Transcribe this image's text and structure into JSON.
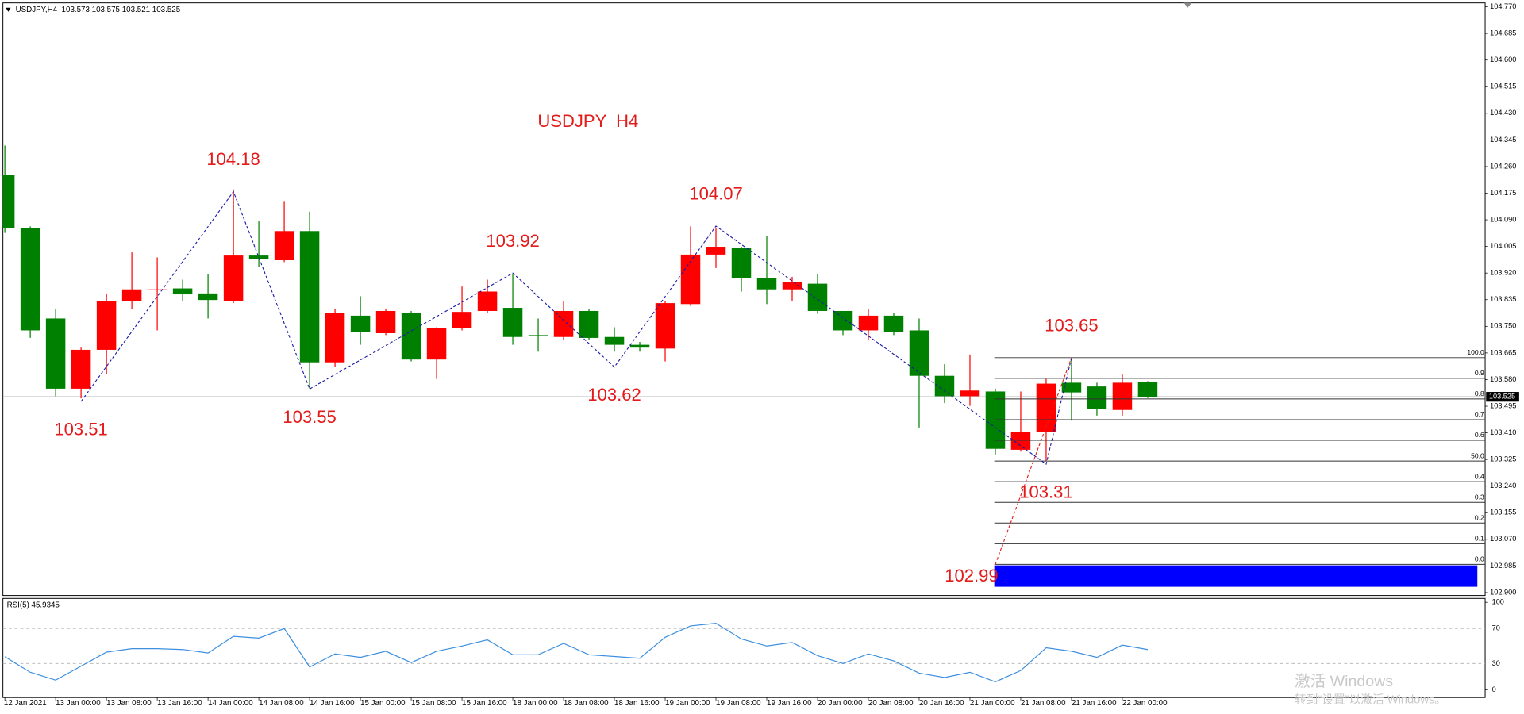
{
  "chart_data": [
    {
      "type": "candlestick",
      "title": "USDJPY,H4  103.573 103.575 103.521 103.525",
      "subtitle": "USDJPY  H4",
      "categories": [
        "12 Jan 2021",
        null,
        "13 Jan 00:00",
        null,
        "13 Jan 08:00",
        null,
        "13 Jan 16:00",
        null,
        "14 Jan 00:00",
        null,
        "14 Jan 08:00",
        null,
        "14 Jan 16:00",
        null,
        "15 Jan 00:00",
        null,
        "15 Jan 08:00",
        null,
        "15 Jan 16:00",
        null,
        "18 Jan 00:00",
        null,
        "18 Jan 08:00",
        null,
        "18 Jan 16:00",
        null,
        "19 Jan 00:00",
        null,
        "19 Jan 08:00",
        null,
        "19 Jan 16:00",
        null,
        "20 Jan 00:00",
        null,
        "20 Jan 08:00",
        null,
        "20 Jan 16:00",
        null,
        "21 Jan 00:00",
        null,
        "21 Jan 08:00",
        null,
        "21 Jan 16:00",
        null,
        "22 Jan 00:00",
        null
      ],
      "open": [
        104.234,
        104.063,
        103.775,
        103.551,
        103.675,
        103.83,
        103.865,
        103.871,
        103.855,
        103.83,
        103.976,
        103.961,
        104.054,
        103.635,
        103.784,
        103.728,
        103.793,
        103.644,
        103.744,
        103.799,
        103.809,
        103.722,
        103.716,
        103.799,
        103.716,
        103.691,
        103.679,
        103.821,
        103.979,
        104.001,
        103.905,
        103.868,
        103.886,
        103.799,
        103.737,
        103.784,
        103.737,
        103.592,
        103.527,
        103.542,
        103.356,
        103.412,
        103.57,
        103.558,
        103.483,
        103.573
      ],
      "high": [
        104.327,
        104.069,
        103.806,
        103.682,
        103.855,
        103.986,
        103.97,
        103.899,
        103.917,
        104.187,
        104.085,
        104.15,
        104.116,
        103.806,
        103.846,
        103.806,
        103.799,
        103.747,
        103.877,
        103.899,
        103.917,
        103.775,
        103.83,
        103.806,
        103.747,
        103.7,
        103.83,
        104.069,
        104.063,
        104.004,
        104.038,
        103.908,
        103.917,
        103.799,
        103.806,
        103.793,
        103.775,
        103.629,
        103.66,
        103.551,
        103.542,
        103.582,
        103.644,
        103.57,
        103.598,
        103.575
      ],
      "low": [
        104.048,
        103.713,
        103.527,
        103.52,
        103.598,
        103.806,
        103.737,
        103.83,
        103.775,
        103.824,
        103.939,
        103.955,
        103.551,
        103.62,
        103.691,
        103.722,
        103.638,
        103.582,
        103.737,
        103.793,
        103.691,
        103.669,
        103.706,
        103.706,
        103.669,
        103.669,
        103.638,
        103.815,
        103.936,
        103.861,
        103.821,
        103.83,
        103.79,
        103.722,
        103.706,
        103.722,
        103.427,
        103.505,
        103.496,
        103.341,
        103.35,
        103.319,
        103.449,
        103.465,
        103.465,
        103.521
      ],
      "close": [
        104.063,
        103.737,
        103.551,
        103.675,
        103.83,
        103.868,
        103.868,
        103.852,
        103.834,
        103.976,
        103.964,
        104.054,
        103.635,
        103.793,
        103.731,
        103.799,
        103.644,
        103.744,
        103.796,
        103.861,
        103.716,
        103.719,
        103.799,
        103.713,
        103.691,
        103.682,
        103.824,
        103.979,
        104.004,
        103.905,
        103.868,
        103.892,
        103.799,
        103.737,
        103.784,
        103.731,
        103.592,
        103.527,
        103.545,
        103.359,
        103.412,
        103.567,
        103.539,
        103.486,
        103.57,
        103.525
      ],
      "up_color": "#ff0000",
      "down_color": "#008000",
      "ylim": [
        102.9,
        104.77
      ],
      "yticks": [
        {
          "value": 104.77,
          "label": "104.770"
        },
        104.685,
        {
          "value": 104.6,
          "label": "104.600"
        },
        104.515,
        {
          "value": 104.43,
          "label": "104.430"
        },
        104.345,
        {
          "value": 104.26,
          "label": "104.260"
        },
        104.175,
        {
          "value": 104.09,
          "label": "104.090"
        },
        104.005,
        {
          "value": 103.92,
          "label": "103.920"
        },
        103.835,
        {
          "value": 103.75,
          "label": "103.750"
        },
        103.665,
        {
          "value": 103.58,
          "label": "103.580"
        },
        103.495,
        {
          "value": 103.41,
          "label": "103.410"
        },
        103.325,
        {
          "value": 103.24,
          "label": "103.240"
        },
        103.155,
        {
          "value": 103.07,
          "label": "103.070"
        },
        102.985,
        {
          "value": 102.9,
          "label": "102.900"
        }
      ],
      "zigzag": [
        103.51,
        104.18,
        103.55,
        103.92,
        103.62,
        104.07,
        103.31,
        103.65
      ],
      "zigzag_color": "#1a1aa6",
      "annotation_color": "#e31b1b",
      "fib_start": 102.99,
      "fib_levels": [
        {
          "value": 1,
          "label": "100.0"
        },
        0.9,
        0.8,
        0.7,
        0.6,
        {
          "value": 0.5,
          "label": "50.0"
        },
        0.4,
        0.3,
        0.2,
        0.1,
        {
          "value": 0,
          "label": "0.0"
        }
      ]
    },
    {
      "type": "line",
      "title": "RSI(5) 45.9345",
      "values": [
        37.8,
        20,
        11,
        27,
        43,
        47,
        47,
        46,
        42,
        61,
        59,
        70,
        26,
        41,
        37,
        44,
        31,
        44,
        50,
        57,
        40,
        40,
        53,
        40,
        38,
        36,
        60,
        73,
        76,
        58,
        50,
        54,
        39,
        30,
        41,
        33,
        19,
        14,
        20,
        9,
        22,
        48,
        44,
        37,
        51,
        45.9345
      ],
      "color": "#3d8fe0",
      "ylim": [
        0,
        100
      ],
      "yticks": [
        0,
        30,
        70,
        100
      ]
    }
  ],
  "watermark": {
    "title": "激活 Windows",
    "subtitle": "转到“设置”以激活 Windows。"
  }
}
